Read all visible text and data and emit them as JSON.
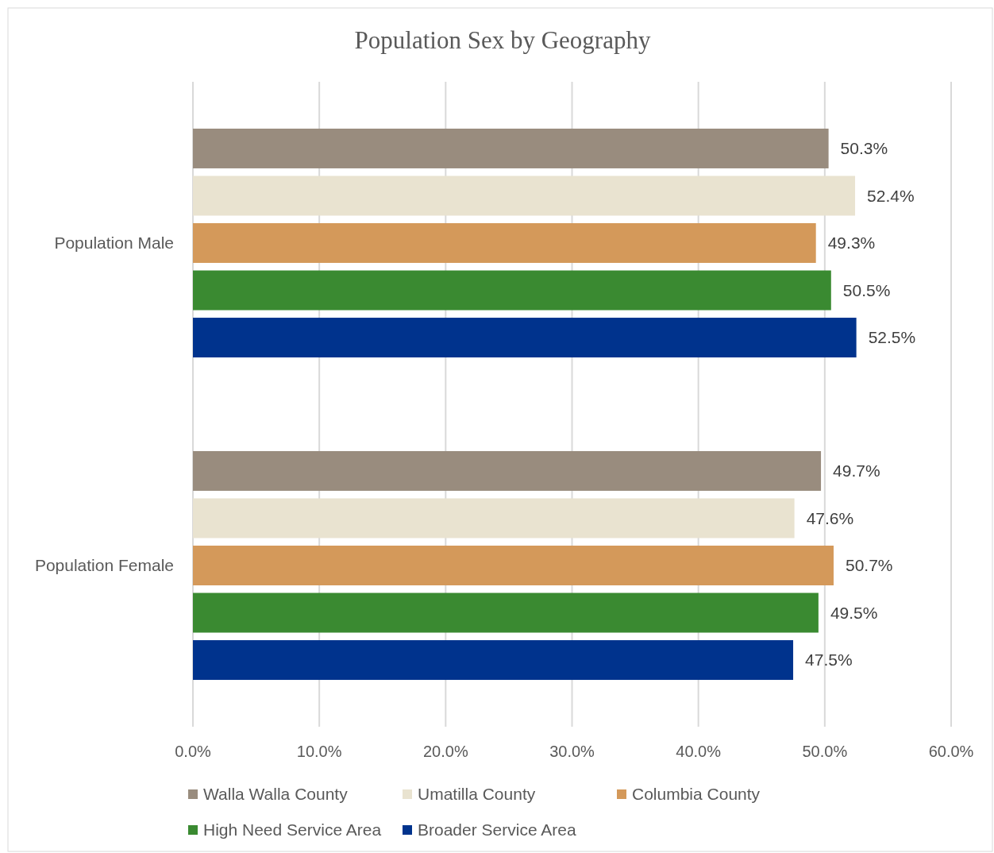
{
  "chart_data": {
    "type": "bar",
    "orientation": "horizontal",
    "title": "Population Sex by Geography",
    "categories": [
      "Population Male",
      "Population Female"
    ],
    "series": [
      {
        "name": "Walla Walla County",
        "color": "#998c7e",
        "values": [
          50.3,
          49.7
        ],
        "value_labels": [
          "50.3%",
          "49.7%"
        ]
      },
      {
        "name": "Umatilla County",
        "color": "#e9e3d0",
        "values": [
          52.4,
          47.6
        ],
        "value_labels": [
          "52.4%",
          "47.6%"
        ]
      },
      {
        "name": "Columbia County",
        "color": "#d4995a",
        "values": [
          49.3,
          50.7
        ],
        "value_labels": [
          "49.3%",
          "50.7%"
        ]
      },
      {
        "name": "High Need Service Area",
        "color": "#3a8a31",
        "values": [
          50.5,
          49.5
        ],
        "value_labels": [
          "50.5%",
          "49.5%"
        ]
      },
      {
        "name": "Broader Service Area",
        "color": "#00338d",
        "values": [
          52.5,
          47.5
        ],
        "value_labels": [
          "52.5%",
          "47.5%"
        ]
      }
    ],
    "xlim": [
      0,
      60
    ],
    "xticks": [
      {
        "value": 0,
        "label": "0.0%"
      },
      {
        "value": 10,
        "label": "10.0%"
      },
      {
        "value": 20,
        "label": "20.0%"
      },
      {
        "value": 30,
        "label": "30.0%"
      },
      {
        "value": 40,
        "label": "40.0%"
      },
      {
        "value": 50,
        "label": "50.0%"
      },
      {
        "value": 60,
        "label": "60.0%"
      }
    ],
    "grid": "x",
    "legend": "bottom"
  }
}
